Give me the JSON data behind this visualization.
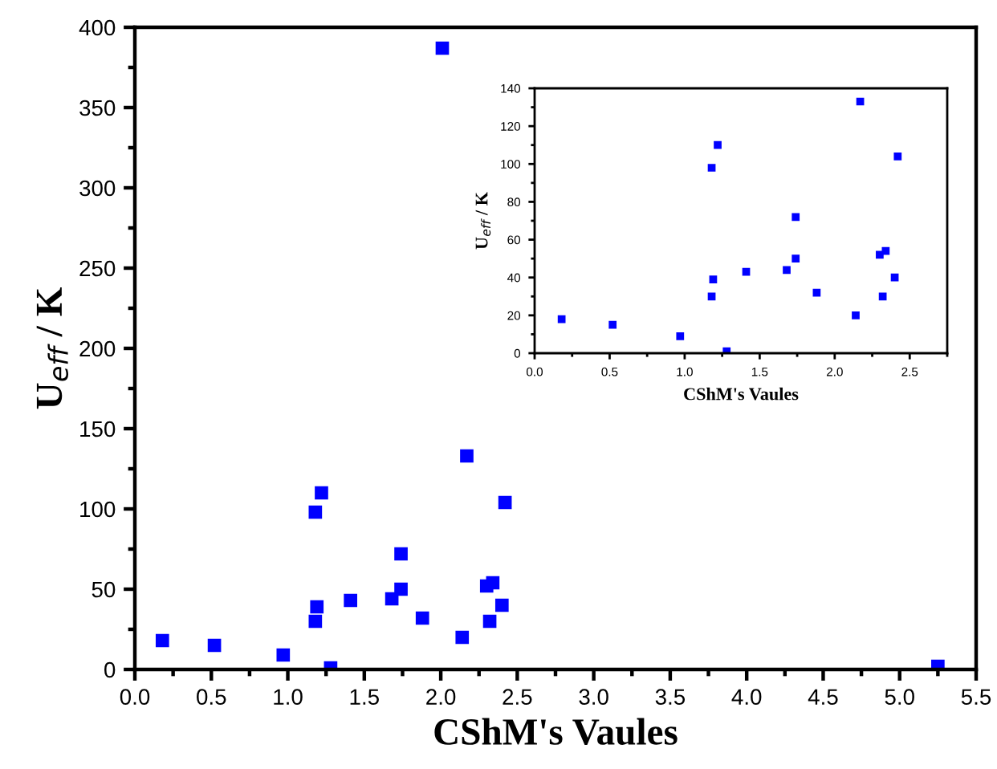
{
  "chart_data": [
    {
      "type": "scatter",
      "xlabel": "CShM's Vaules",
      "ylabel": "U$_{eff}$ / K",
      "xlim": [
        0,
        5.5
      ],
      "ylim": [
        0,
        400
      ],
      "xticks": [
        {
          "value": 0,
          "label": "0.0"
        },
        0.5,
        {
          "value": 1,
          "label": "1.0"
        },
        1.5,
        {
          "value": 2,
          "label": "2.0"
        },
        2.5,
        {
          "value": 3,
          "label": "3.0"
        },
        3.5,
        {
          "value": 4,
          "label": "4.0"
        },
        4.5,
        {
          "value": 5,
          "label": "5.0"
        },
        5.5
      ],
      "yticks": [
        0,
        50,
        100,
        150,
        200,
        250,
        300,
        350,
        400
      ],
      "marker": "square",
      "grid": false,
      "legend": false,
      "series": [
        {
          "color": "#0000ff",
          "x": [
            0.18,
            0.52,
            0.97,
            1.18,
            1.19,
            1.18,
            1.22,
            1.28,
            1.41,
            1.68,
            1.74,
            1.74,
            1.88,
            2.01,
            2.14,
            2.17,
            2.3,
            2.32,
            2.34,
            2.4,
            2.42,
            5.25
          ],
          "values": [
            18,
            15,
            9,
            30,
            39,
            98,
            110,
            1,
            43,
            44,
            50,
            72,
            32,
            387,
            20,
            133,
            52,
            30,
            54,
            40,
            104,
            2
          ]
        }
      ]
    },
    {
      "type": "scatter",
      "xlabel": "CShM's Vaules",
      "ylabel": "U$_{eff}$ / K",
      "xlim": [
        0,
        2.75
      ],
      "ylim": [
        0,
        140
      ],
      "xticks": [
        {
          "value": 0,
          "label": "0.0"
        },
        0.5,
        {
          "value": 1,
          "label": "1.0"
        },
        1.5,
        {
          "value": 2,
          "label": "2.0"
        },
        2.5
      ],
      "yticks": [
        0,
        20,
        40,
        60,
        80,
        100,
        120,
        140
      ],
      "marker": "square",
      "grid": false,
      "legend": false,
      "series": [
        {
          "color": "#0000ff",
          "x": [
            0.18,
            0.52,
            0.97,
            1.18,
            1.19,
            1.18,
            1.22,
            1.28,
            1.41,
            1.68,
            1.74,
            1.74,
            1.88,
            2.14,
            2.17,
            2.3,
            2.32,
            2.34,
            2.4,
            2.42
          ],
          "values": [
            18,
            15,
            9,
            30,
            39,
            98,
            110,
            1,
            43,
            44,
            50,
            72,
            32,
            20,
            133,
            52,
            30,
            54,
            40,
            104
          ]
        }
      ]
    }
  ]
}
